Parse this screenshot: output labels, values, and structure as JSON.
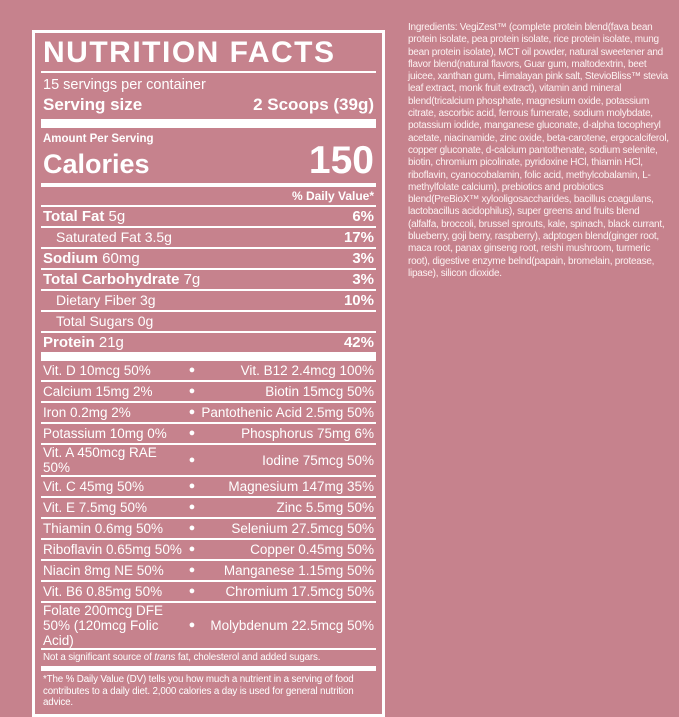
{
  "colors": {
    "background": "#c6828d",
    "foreground": "#ffffff"
  },
  "panel": {
    "title": "NUTRITION FACTS",
    "servings_per_container": "15 servings per container",
    "serving_size_label": "Serving size",
    "serving_size_value": "2 Scoops (39g)",
    "amount_per_serving": "Amount Per Serving",
    "calories_label": "Calories",
    "calories_value": "150",
    "daily_value_header": "% Daily Value*",
    "nutrients": [
      {
        "label": "Total Fat",
        "amount": "5g",
        "dv": "6%",
        "style": "main"
      },
      {
        "label": "Saturated Fat",
        "amount": "3.5g",
        "dv": "17%",
        "style": "sub"
      },
      {
        "label": "Sodium",
        "amount": "60mg",
        "dv": "3%",
        "style": "main"
      },
      {
        "label": "Total Carbohydrate",
        "amount": "7g",
        "dv": "3%",
        "style": "main"
      },
      {
        "label": "Dietary Fiber",
        "amount": "3g",
        "dv": "10%",
        "style": "sub"
      },
      {
        "label": "Total Sugars",
        "amount": "0g",
        "dv": "",
        "style": "sub"
      },
      {
        "label": "Protein",
        "amount": "21g",
        "dv": "42%",
        "style": "main"
      }
    ],
    "bullet_glyph": "●",
    "micronutrients": [
      {
        "left": "Vit. D 10mcg 50%",
        "right": "Vit. B12 2.4mcg 100%"
      },
      {
        "left": "Calcium 15mg 2%",
        "right": "Biotin 15mcg 50%"
      },
      {
        "left": "Iron 0.2mg 2%",
        "right": "Pantothenic Acid 2.5mg 50%"
      },
      {
        "left": "Potassium 10mg 0%",
        "right": "Phosphorus 75mg 6%"
      },
      {
        "left": "Vit. A 450mcg RAE 50%",
        "right": "Iodine 75mcg 50%"
      },
      {
        "left": "Vit. C 45mg 50%",
        "right": "Magnesium 147mg 35%"
      },
      {
        "left": "Vit. E 7.5mg 50%",
        "right": "Zinc 5.5mg 50%"
      },
      {
        "left": "Thiamin 0.6mg 50%",
        "right": "Selenium 27.5mcg 50%"
      },
      {
        "left": "Riboflavin 0.65mg 50%",
        "right": "Copper 0.45mg 50%"
      },
      {
        "left": "Niacin 8mg NE 50%",
        "right": "Manganese 1.15mg 50%"
      },
      {
        "left": "Vit. B6 0.85mg 50%",
        "right": "Chromium 17.5mcg 50%"
      },
      {
        "left": "Folate 200mcg DFE 50% (120mcg Folic Acid)",
        "right": "Molybdenum 22.5mcg 50%"
      }
    ],
    "note": {
      "prefix": "Not a significant source of ",
      "italic": "trans",
      "suffix": " fat, cholesterol and added sugars."
    },
    "footnote": "*The % Daily Value (DV) tells you how much a nutrient in a serving of food contributes to a daily diet. 2,000 calories a day is used for general nutrition advice."
  },
  "ingredients": {
    "text": "Ingredients: VegiZest™ (complete protein blend(fava bean protein isolate, pea protein isolate, rice protein isolate, mung bean protein isolate), MCT oil powder, natural sweetener and flavor blend(natural flavors, Guar gum, maltodextrin, beet juicee, xanthan gum, Himalayan pink salt, StevioBliss™ stevia leaf extract, monk fruit extract), vitamin and mineral blend(tricalcium phosphate, magnesium oxide, potassium citrate, ascorbic acid, ferrous fumerate, sodium molybdate, potassium iodide, manganese gluconate, d-alpha tocopheryl acetate, niacinamide, zinc oxide, beta-carotene, ergocalciferol, copper gluconate, d-calcium pantothenate, sodium selenite, biotin, chromium picolinate, pyridoxine HCl, thiamin HCl, riboflavin, cyanocobalamin, folic acid, methylcobalamin, L-methylfolate calcium), prebiotics and probiotics blend(PreBioX™ xylooligosaccharides, bacillus coagulans, lactobacillus acidophilus), super greens and fruits blend (alfalfa, broccoli, brussel sprouts, kale, spinach, black currant, blueberry, goji berry, raspberry), adptogen blend(ginger root, maca root, panax ginseng root, reishi mushroom, turmeric root), digestive enzyme belnd(papain, bromelain, protease, lipase), silicon dioxide."
  }
}
